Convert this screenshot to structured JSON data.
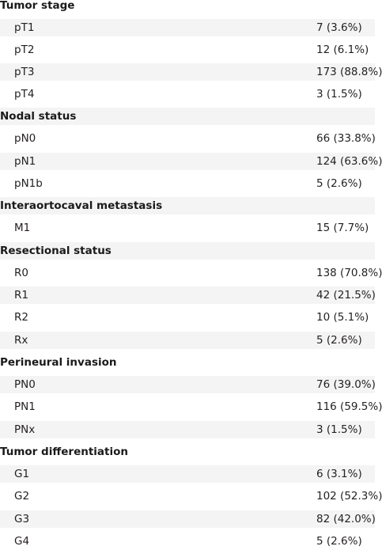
{
  "sections": [
    {
      "title": "Tumor stage",
      "rows": [
        {
          "label": "pT1",
          "value": "7 (3.6%)"
        },
        {
          "label": "pT2",
          "value": "12 (6.1%)"
        },
        {
          "label": "pT3",
          "value": "173 (88.8%)"
        },
        {
          "label": "pT4",
          "value": "3 (1.5%)"
        }
      ]
    },
    {
      "title": "Nodal status",
      "rows": [
        {
          "label": "pN0",
          "value": "66 (33.8%)"
        },
        {
          "label": "pN1",
          "value": "124 (63.6%)"
        },
        {
          "label": "pN1b",
          "value": "5 (2.6%)"
        }
      ]
    },
    {
      "title": "Interaortocaval metastasis",
      "rows": [
        {
          "label": "M1",
          "value": "15 (7.7%)"
        }
      ]
    },
    {
      "title": "Resectional status",
      "rows": [
        {
          "label": "R0",
          "value": "138 (70.8%)"
        },
        {
          "label": "R1",
          "value": "42 (21.5%)"
        },
        {
          "label": "R2",
          "value": "10 (5.1%)"
        },
        {
          "label": "Rx",
          "value": "5 (2.6%)"
        }
      ]
    },
    {
      "title": "Perineural invasion",
      "rows": [
        {
          "label": "PN0",
          "value": "76 (39.0%)"
        },
        {
          "label": "PN1",
          "value": "116 (59.5%)"
        },
        {
          "label": "PNx",
          "value": "3 (1.5%)"
        }
      ]
    },
    {
      "title": "Tumor differentiation",
      "rows": [
        {
          "label": "G1",
          "value": "6 (3.1%)"
        },
        {
          "label": "G2",
          "value": "102 (52.3%)"
        },
        {
          "label": "G3",
          "value": "82 (42.0%)"
        },
        {
          "label": "G4",
          "value": "5 (2.6%)"
        }
      ]
    }
  ]
}
